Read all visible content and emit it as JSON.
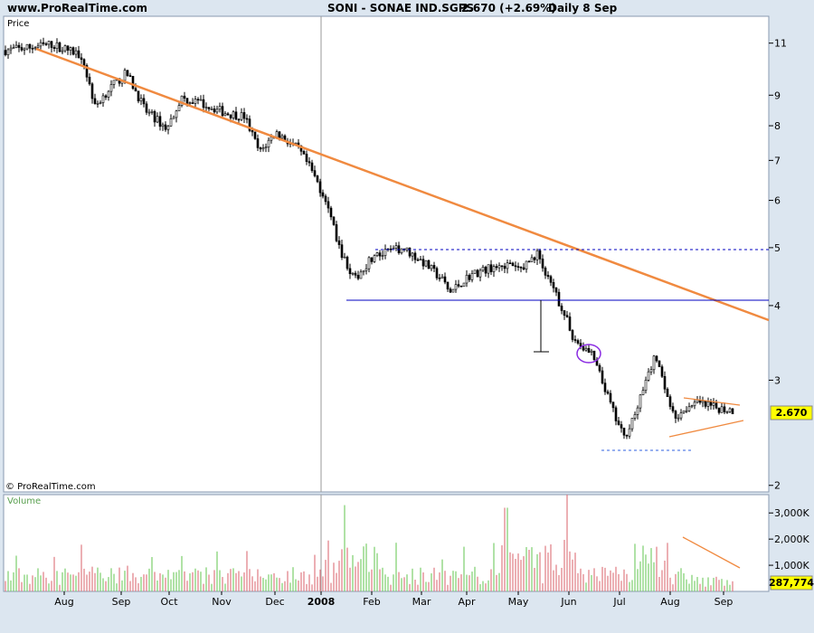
{
  "header": {
    "site": "www.ProRealTime.com",
    "symbol": "SONI - SONAE IND.SGPS",
    "price_change": "2.670 (+2.69%)",
    "period": "Daily  8 Sep"
  },
  "price_panel": {
    "label": "Price",
    "copyright": "© ProRealTime.com",
    "current_price": "2.670"
  },
  "volume_panel": {
    "label": "Volume",
    "current_volume": "287,774"
  },
  "colors": {
    "background": "#dce6f0",
    "panel": "#ffffff",
    "trendline": "#f08a40",
    "support": "#0000c0",
    "up_volume": "#7ccf6c",
    "down_volume": "#e07a82",
    "badge": "#ffff00",
    "circle": "#8a2be2"
  },
  "chart_data": [
    {
      "type": "candlestick",
      "scale": "log",
      "ylim": [
        1.95,
        12.2
      ],
      "yticks": [
        2,
        3,
        4,
        5,
        6,
        7,
        8,
        9,
        11
      ],
      "x_tick_labels": [
        "Aug",
        "Sep",
        "Oct",
        "Nov",
        "Dec",
        "2008",
        "Feb",
        "Mar",
        "Apr",
        "May",
        "Jun",
        "Jul",
        "Aug",
        "Sep"
      ],
      "grid": false,
      "series": [
        {
          "points": [
            [
              "Jul",
              10.7
            ],
            [
              "Aug",
              10.6
            ],
            [
              "Aug",
              10.9
            ],
            [
              "Aug",
              10.5
            ],
            [
              "Aug",
              8.6
            ],
            [
              "Sep",
              9.2
            ],
            [
              "Sep",
              9.8
            ],
            [
              "Sep",
              8.5
            ],
            [
              "Oct",
              7.9
            ],
            [
              "Oct",
              8.9
            ],
            [
              "Oct",
              8.7
            ],
            [
              "Nov",
              8.4
            ],
            [
              "Nov",
              8.3
            ],
            [
              "Nov",
              7.2
            ],
            [
              "Dec",
              7.8
            ],
            [
              "Dec",
              7.3
            ],
            [
              "Dec",
              6.7
            ],
            [
              "2008",
              6.0
            ],
            [
              "2008",
              5.0
            ],
            [
              "2008",
              4.4
            ],
            [
              "Feb",
              4.8
            ],
            [
              "Feb",
              5.0
            ],
            [
              "Mar",
              4.7
            ],
            [
              "Mar",
              4.4
            ],
            [
              "Mar",
              4.2
            ],
            [
              "Apr",
              4.5
            ],
            [
              "Apr",
              4.7
            ],
            [
              "May",
              4.6
            ],
            [
              "May",
              4.9
            ],
            [
              "May",
              4.5
            ],
            [
              "Jun",
              4.0
            ],
            [
              "Jun",
              3.5
            ],
            [
              "Jun",
              3.3
            ],
            [
              "Jun",
              3.0
            ],
            [
              "Jul",
              2.6
            ],
            [
              "Jul",
              2.4
            ],
            [
              "Jul",
              2.7
            ],
            [
              "Aug",
              3.3
            ],
            [
              "Aug",
              2.6
            ],
            [
              "Aug",
              2.75
            ],
            [
              "Sep",
              2.7
            ],
            [
              "Sep",
              2.67
            ]
          ]
        }
      ],
      "lines": [
        {
          "name": "downtrend",
          "from": [
            "Jul",
            11.3
          ],
          "to": [
            "Sep",
            3.9
          ]
        },
        {
          "name": "support",
          "value": 4.2
        },
        {
          "name": "resistance",
          "value": 5.1
        },
        {
          "name": "low",
          "value": 2.45
        }
      ]
    },
    {
      "type": "bar",
      "title": "Volume",
      "yticks": [
        1000000,
        2000000,
        3000000
      ],
      "ytick_labels": [
        "1,000K",
        "2,000K",
        "3,000K"
      ],
      "ylim": [
        0,
        3700000
      ]
    }
  ]
}
